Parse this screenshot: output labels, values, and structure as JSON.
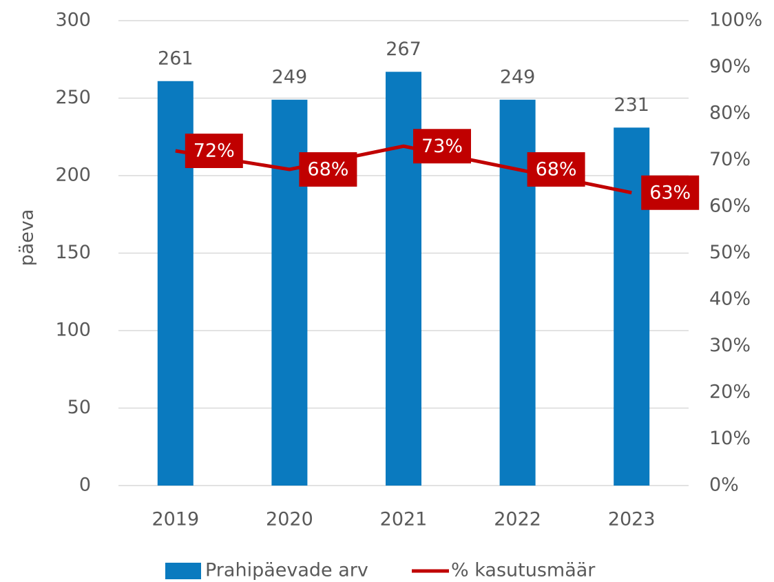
{
  "chart_data": {
    "type": "bar",
    "categories": [
      "2019",
      "2020",
      "2021",
      "2022",
      "2023"
    ],
    "series": [
      {
        "name": "Prahipäevade arv",
        "type": "bar",
        "color": "#0a7abf",
        "values": [
          261,
          249,
          267,
          249,
          231
        ]
      },
      {
        "name": "% kasutusmäär",
        "type": "line",
        "axis": "y2",
        "color": "#c00000",
        "values": [
          72,
          68,
          73,
          68,
          63
        ],
        "value_labels": [
          "72%",
          "68%",
          "73%",
          "68%",
          "63%"
        ]
      }
    ],
    "ylabel": "päeva",
    "ylim": [
      0,
      300
    ],
    "yticks": [
      0,
      50,
      100,
      150,
      200,
      250,
      300
    ],
    "y2lim": [
      0,
      100
    ],
    "y2ticks": [
      {
        "value": 0,
        "label": "0%"
      },
      {
        "value": 10,
        "label": "10%"
      },
      {
        "value": 20,
        "label": "20%"
      },
      {
        "value": 30,
        "label": "30%"
      },
      {
        "value": 40,
        "label": "40%"
      },
      {
        "value": 50,
        "label": "50%"
      },
      {
        "value": 60,
        "label": "60%"
      },
      {
        "value": 70,
        "label": "70%"
      },
      {
        "value": 80,
        "label": "80%"
      },
      {
        "value": 90,
        "label": "90%"
      },
      {
        "value": 100,
        "label": "100%"
      }
    ],
    "grid": true,
    "legend": "bottom"
  }
}
